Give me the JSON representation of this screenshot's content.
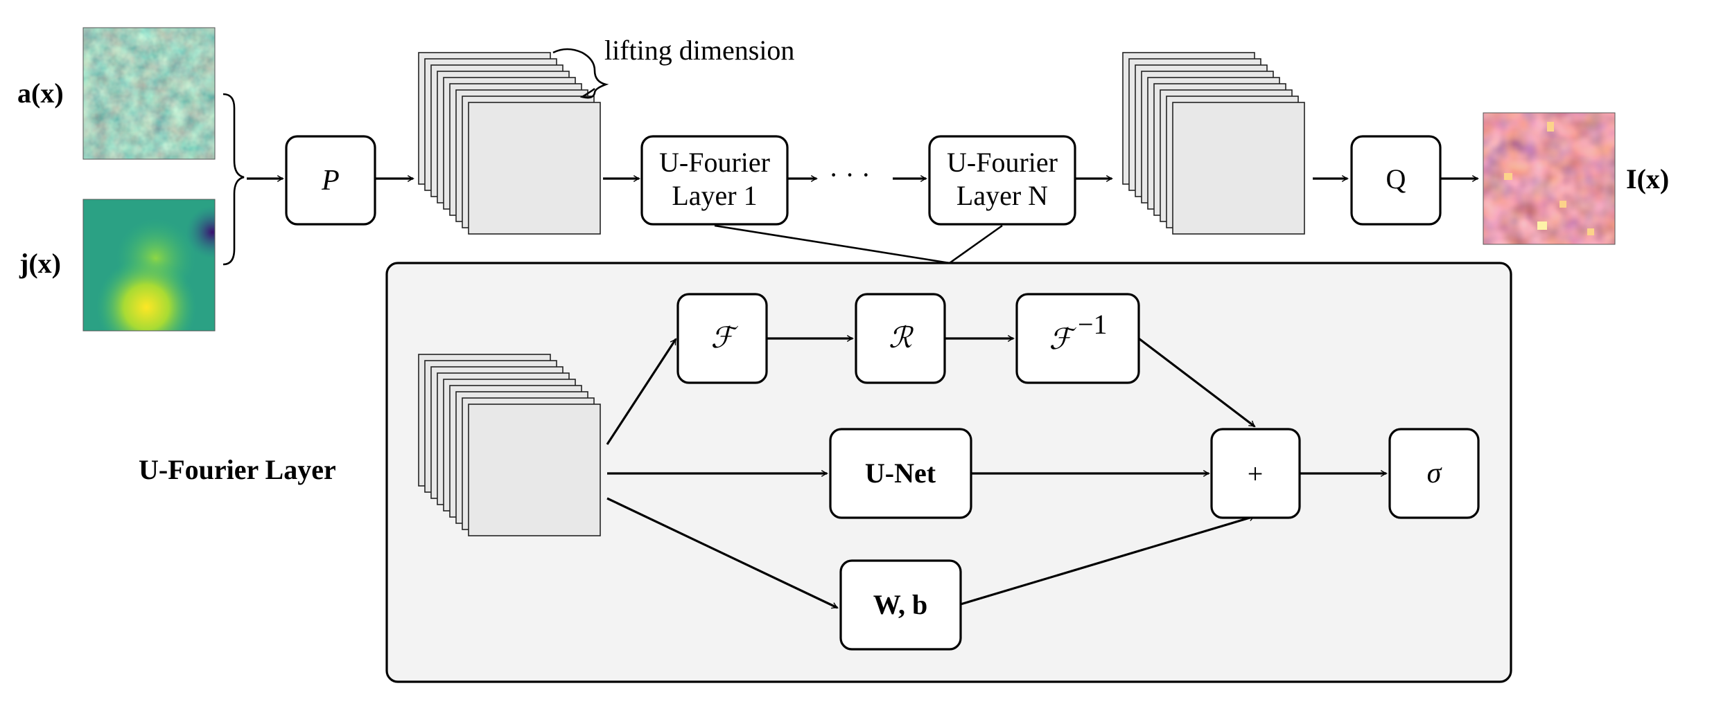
{
  "inputs": {
    "a_label": "a(x)",
    "j_label": "j(x)"
  },
  "output": {
    "label": "I(x)"
  },
  "annotation": {
    "lifting": "lifting dimension"
  },
  "nodes": {
    "P": "P",
    "ufl1_line1": "U-Fourier",
    "ufl1_line2": "Layer 1",
    "dots": "· · ·",
    "ufln_line1": "U-Fourier",
    "ufln_line2": "Layer N",
    "Q": "Q"
  },
  "detail": {
    "title": "U-Fourier Layer",
    "fourier": "ℱ",
    "R": "ℛ",
    "inv_fourier_base": "ℱ",
    "inv_fourier_sup": "−1",
    "unet": "U-Net",
    "wb": "W, b",
    "plus": "+",
    "sigma": "σ"
  },
  "colors": {
    "viridis_dark": "#440154",
    "viridis_mid": "#21918c",
    "viridis_light": "#fde725",
    "inferno_dark": "#2a0a5e",
    "inferno_mid": "#c7403f",
    "inferno_light": "#fcbf6b"
  }
}
